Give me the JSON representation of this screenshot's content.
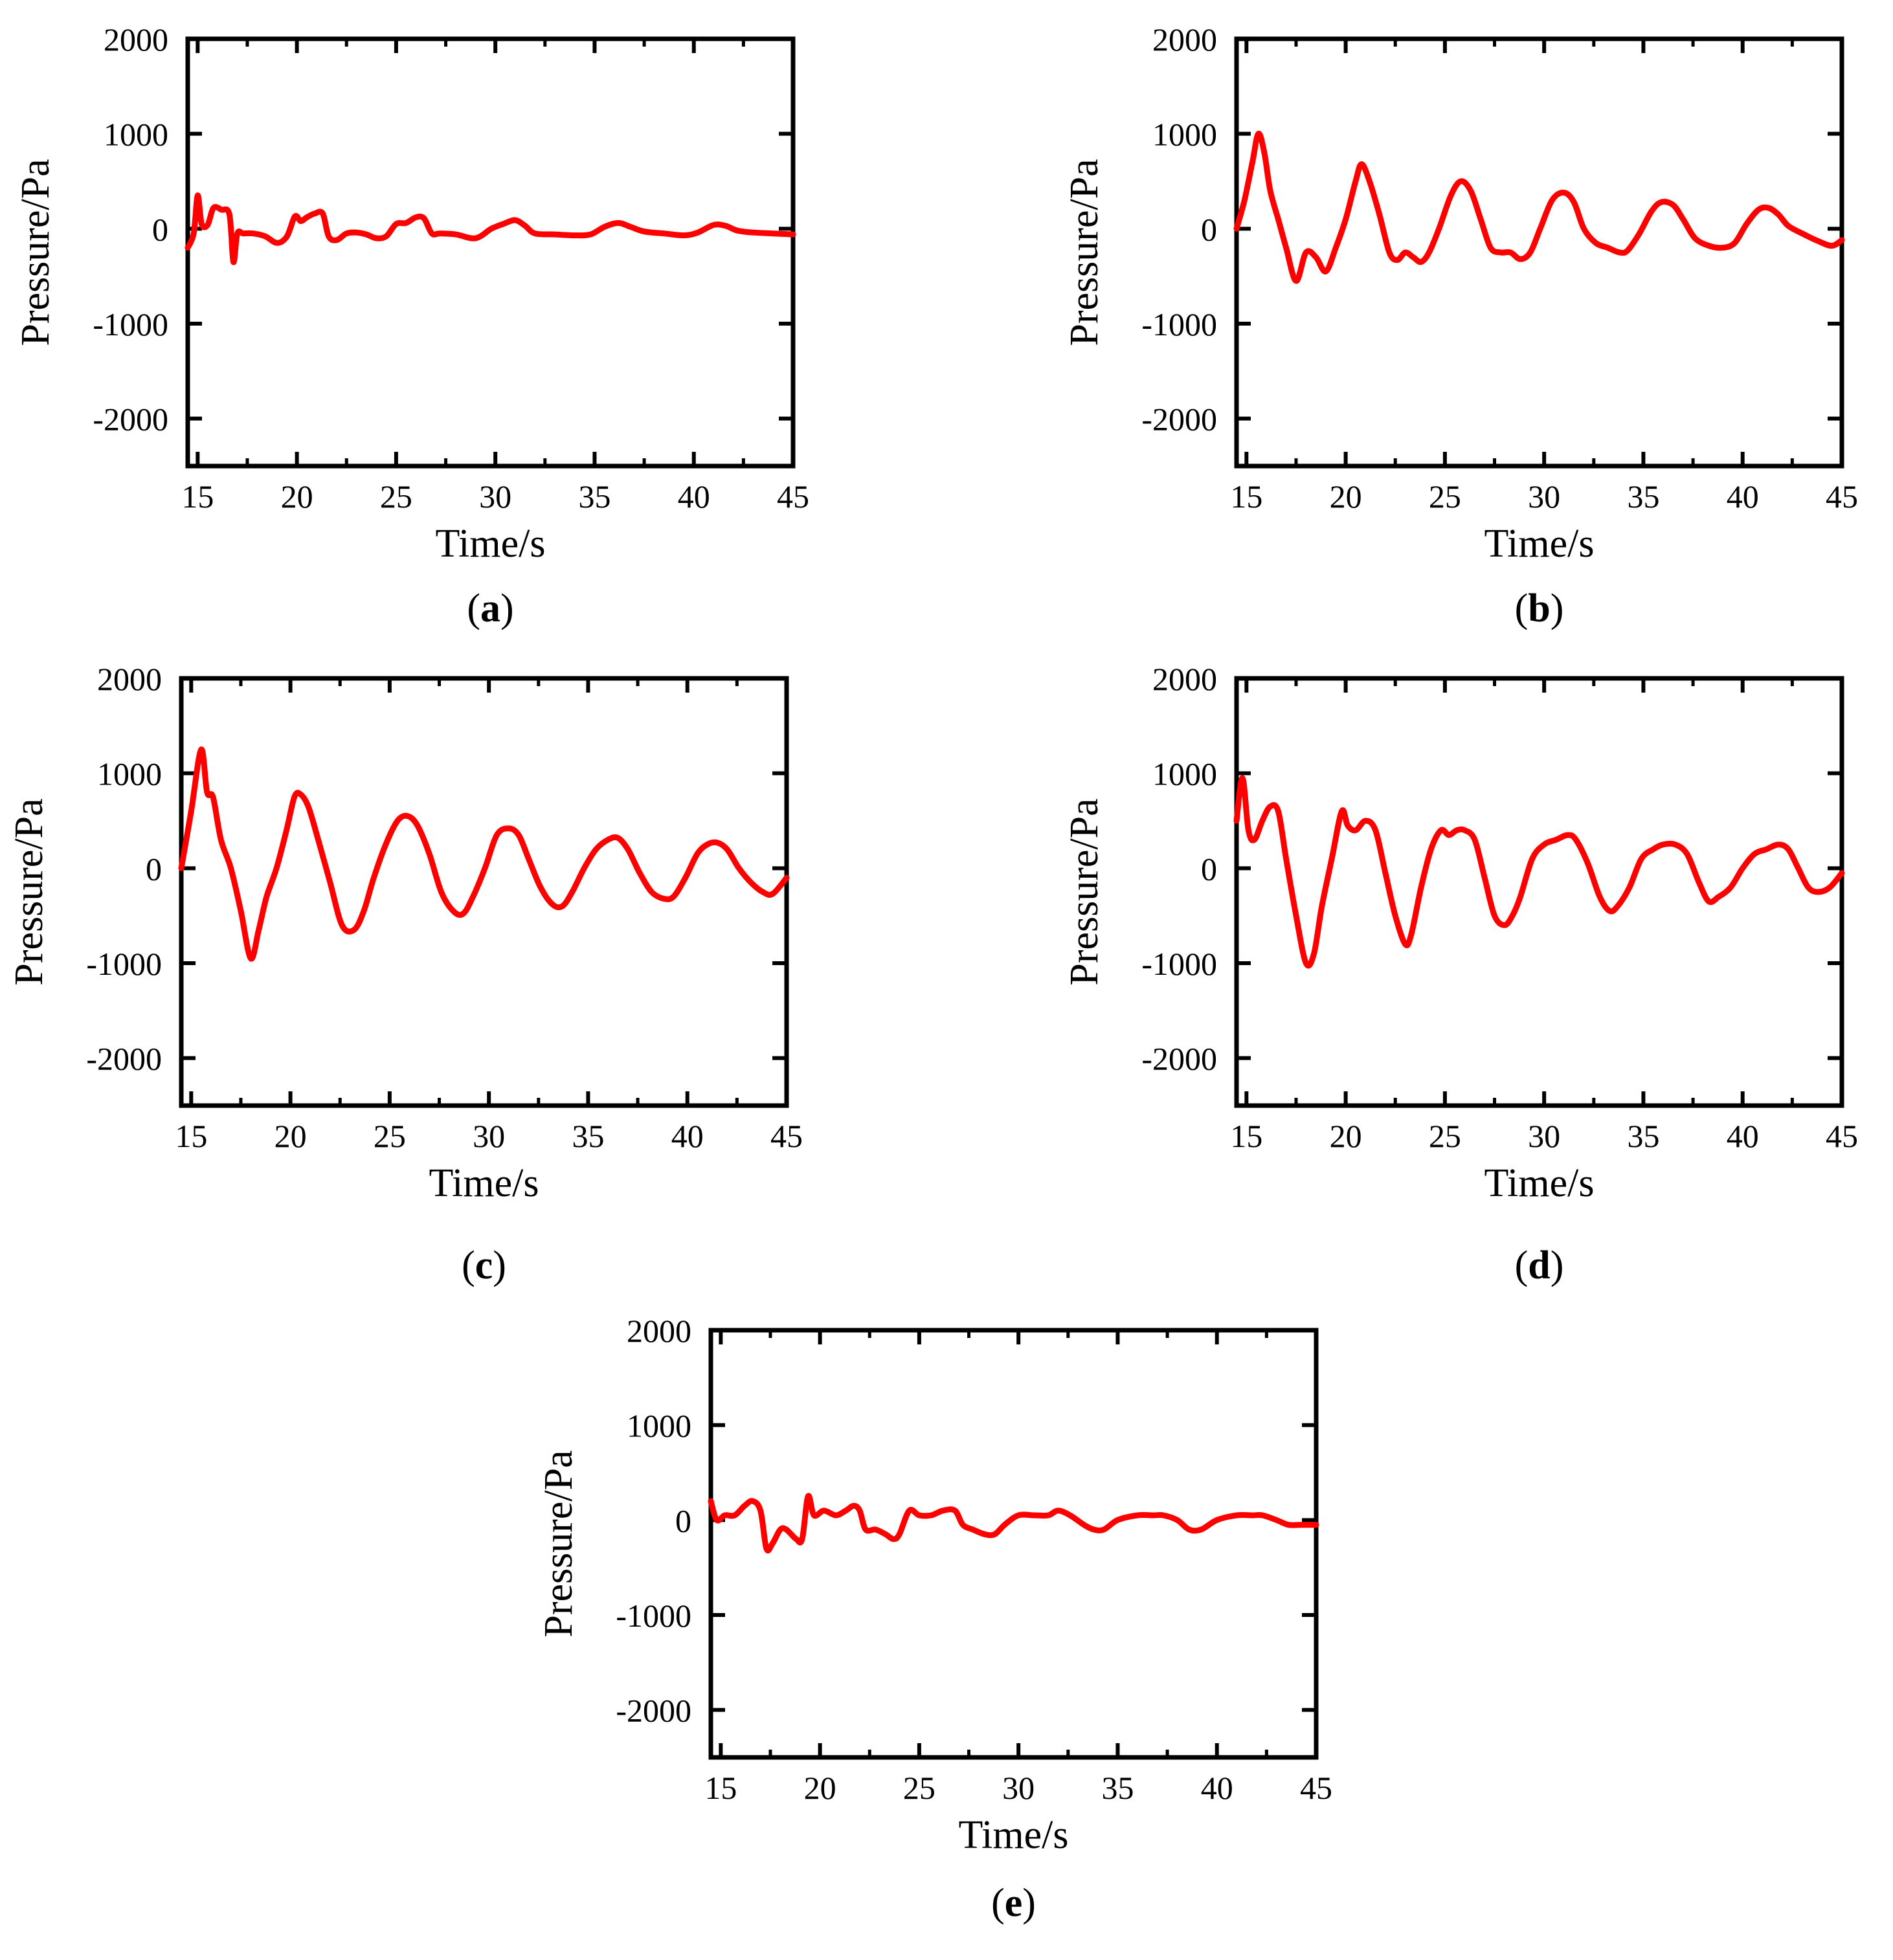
{
  "figure": {
    "line_color": "#ff0000",
    "axis_color": "#000000",
    "background": "#ffffff"
  },
  "chart_data": [
    {
      "id": "a",
      "type": "line",
      "panel_label": "a",
      "xlabel": "Time/s",
      "ylabel": "Pressure/Pa",
      "xlim": [
        14.5,
        45
      ],
      "ylim": [
        -2500,
        2000
      ],
      "xticks": [
        15,
        20,
        25,
        30,
        35,
        40,
        45
      ],
      "yticks": [
        -2000,
        -1000,
        0,
        1000,
        2000
      ],
      "series": [
        {
          "name": "pressure",
          "x": [
            14.5,
            14.8,
            15.0,
            15.2,
            15.5,
            15.8,
            16.2,
            16.6,
            16.8,
            17.0,
            17.3,
            17.8,
            18.4,
            19.0,
            19.5,
            19.9,
            20.2,
            20.5,
            20.9,
            21.3,
            21.6,
            22.0,
            22.5,
            23.0,
            23.5,
            24.0,
            24.5,
            25.0,
            25.5,
            26.0,
            26.4,
            26.8,
            27.2,
            28.0,
            29.0,
            29.8,
            30.4,
            31.0,
            31.5,
            32.0,
            33.0,
            34.0,
            34.8,
            35.5,
            36.2,
            36.8,
            37.5,
            38.5,
            39.5,
            40.2,
            41.0,
            41.6,
            42.2,
            43.0,
            44.0,
            45.0
          ],
          "values": [
            -200,
            -50,
            350,
            50,
            40,
            220,
            200,
            150,
            -350,
            -50,
            -50,
            -50,
            -80,
            -150,
            -80,
            130,
            80,
            120,
            160,
            160,
            -80,
            -120,
            -50,
            -40,
            -60,
            -100,
            -80,
            50,
            60,
            120,
            110,
            -50,
            -50,
            -60,
            -100,
            0,
            50,
            90,
            30,
            -50,
            -60,
            -70,
            -60,
            20,
            60,
            20,
            -30,
            -50,
            -70,
            -40,
            40,
            30,
            -20,
            -40,
            -50,
            -60
          ]
        }
      ]
    },
    {
      "id": "b",
      "type": "line",
      "panel_label": "b",
      "xlabel": "Time/s",
      "ylabel": "Pressure/Pa",
      "xlim": [
        14.5,
        45
      ],
      "ylim": [
        -2500,
        2000
      ],
      "xticks": [
        15,
        20,
        25,
        30,
        35,
        40,
        45
      ],
      "yticks": [
        -2000,
        -1000,
        0,
        1000,
        2000
      ],
      "series": [
        {
          "name": "pressure",
          "x": [
            14.5,
            14.9,
            15.3,
            15.6,
            15.9,
            16.2,
            16.6,
            17.0,
            17.5,
            18.0,
            18.5,
            19.0,
            19.5,
            20.0,
            20.5,
            20.8,
            21.2,
            21.7,
            22.2,
            22.6,
            23.0,
            23.4,
            23.8,
            24.2,
            24.7,
            25.3,
            25.8,
            26.3,
            26.8,
            27.3,
            27.8,
            28.3,
            28.8,
            29.3,
            29.8,
            30.4,
            31.0,
            31.5,
            32.0,
            32.6,
            33.2,
            33.8,
            34.2,
            34.8,
            35.4,
            35.9,
            36.5,
            37.0,
            37.6,
            38.3,
            39.0,
            39.6,
            40.2,
            40.8,
            41.3,
            41.8,
            42.3,
            43.0,
            43.8,
            44.5,
            45.0
          ],
          "values": [
            0,
            300,
            700,
            1000,
            800,
            400,
            100,
            -200,
            -550,
            -250,
            -300,
            -450,
            -200,
            100,
            500,
            680,
            500,
            150,
            -250,
            -330,
            -250,
            -300,
            -350,
            -250,
            0,
            350,
            500,
            400,
            100,
            -200,
            -250,
            -250,
            -320,
            -250,
            0,
            300,
            380,
            280,
            0,
            -150,
            -200,
            -250,
            -230,
            -50,
            180,
            280,
            250,
            100,
            -100,
            -180,
            -200,
            -150,
            50,
            200,
            220,
            150,
            30,
            -50,
            -130,
            -180,
            -120
          ]
        }
      ]
    },
    {
      "id": "c",
      "type": "line",
      "panel_label": "c",
      "xlabel": "Time/s",
      "ylabel": "Pressure/Pa",
      "xlim": [
        14.5,
        45
      ],
      "ylim": [
        -2500,
        2000
      ],
      "xticks": [
        15,
        20,
        25,
        30,
        35,
        40,
        45
      ],
      "yticks": [
        -2000,
        -1000,
        0,
        1000,
        2000
      ],
      "series": [
        {
          "name": "pressure",
          "x": [
            14.5,
            15.0,
            15.5,
            15.8,
            16.1,
            16.5,
            17.0,
            17.5,
            18.0,
            18.4,
            18.8,
            19.3,
            19.8,
            20.2,
            20.5,
            20.9,
            21.4,
            22.0,
            22.6,
            23.2,
            23.7,
            24.2,
            24.8,
            25.4,
            25.9,
            26.4,
            27.0,
            27.6,
            28.2,
            28.7,
            29.2,
            29.8,
            30.4,
            31.0,
            31.5,
            32.0,
            32.6,
            33.2,
            33.7,
            34.2,
            34.8,
            35.4,
            36.0,
            36.5,
            37.0,
            37.6,
            38.2,
            38.8,
            39.3,
            39.9,
            40.5,
            41.0,
            41.5,
            42.0,
            42.6,
            43.2,
            43.8,
            44.3,
            45.0
          ],
          "values": [
            0,
            600,
            1250,
            800,
            750,
            300,
            0,
            -450,
            -950,
            -650,
            -300,
            0,
            400,
            750,
            780,
            650,
            300,
            -150,
            -600,
            -650,
            -450,
            -100,
            250,
            500,
            550,
            450,
            150,
            -250,
            -450,
            -480,
            -300,
            0,
            350,
            420,
            350,
            100,
            -200,
            -380,
            -400,
            -250,
            0,
            200,
            300,
            320,
            200,
            -50,
            -250,
            -320,
            -300,
            -100,
            150,
            250,
            270,
            200,
            0,
            -150,
            -250,
            -270,
            -100
          ]
        }
      ]
    },
    {
      "id": "d",
      "type": "line",
      "panel_label": "d",
      "xlabel": "Time/s",
      "ylabel": "Pressure/Pa",
      "xlim": [
        14.5,
        45
      ],
      "ylim": [
        -2500,
        2000
      ],
      "xticks": [
        15,
        20,
        25,
        30,
        35,
        40,
        45
      ],
      "yticks": [
        -2000,
        -1000,
        0,
        1000,
        2000
      ],
      "series": [
        {
          "name": "pressure",
          "x": [
            14.5,
            14.8,
            15.1,
            15.4,
            15.8,
            16.2,
            16.6,
            17.0,
            17.5,
            18.0,
            18.4,
            18.8,
            19.3,
            19.8,
            20.1,
            20.5,
            21.0,
            21.5,
            22.0,
            22.5,
            23.0,
            23.3,
            23.8,
            24.3,
            24.8,
            25.2,
            25.6,
            26.0,
            26.5,
            27.0,
            27.5,
            28.0,
            28.4,
            28.8,
            29.4,
            30.0,
            30.6,
            31.2,
            31.6,
            32.2,
            32.8,
            33.3,
            33.7,
            34.3,
            34.9,
            35.5,
            36.0,
            36.6,
            37.2,
            37.8,
            38.3,
            38.8,
            39.4,
            40.0,
            40.6,
            41.2,
            41.8,
            42.3,
            42.8,
            43.3,
            43.8,
            44.4,
            45.0
          ],
          "values": [
            500,
            950,
            400,
            300,
            500,
            650,
            600,
            100,
            -500,
            -1000,
            -900,
            -400,
            100,
            600,
            450,
            400,
            500,
            400,
            -50,
            -500,
            -800,
            -700,
            -200,
            200,
            400,
            350,
            400,
            400,
            300,
            -100,
            -500,
            -600,
            -500,
            -300,
            100,
            250,
            300,
            350,
            300,
            50,
            -300,
            -450,
            -400,
            -200,
            100,
            200,
            250,
            250,
            150,
            -150,
            -350,
            -300,
            -200,
            0,
            150,
            200,
            250,
            200,
            0,
            -200,
            -250,
            -200,
            -50
          ]
        }
      ]
    },
    {
      "id": "e",
      "type": "line",
      "panel_label": "e",
      "xlabel": "Time/s",
      "ylabel": "Pressure/Pa",
      "xlim": [
        14.5,
        45
      ],
      "ylim": [
        -2500,
        2000
      ],
      "xticks": [
        15,
        20,
        25,
        30,
        35,
        40,
        45
      ],
      "yticks": [
        -2000,
        -1000,
        0,
        1000,
        2000
      ],
      "series": [
        {
          "name": "pressure",
          "x": [
            14.5,
            14.8,
            15.2,
            15.7,
            16.2,
            16.6,
            17.0,
            17.3,
            17.6,
            18.0,
            18.3,
            18.8,
            19.1,
            19.4,
            19.7,
            20.2,
            20.8,
            21.3,
            21.7,
            22.0,
            22.3,
            22.8,
            23.3,
            23.7,
            24.0,
            24.5,
            25.0,
            25.6,
            26.2,
            26.8,
            27.2,
            27.7,
            28.3,
            28.8,
            29.3,
            30.0,
            30.8,
            31.5,
            32.0,
            32.6,
            33.3,
            33.8,
            34.3,
            35.0,
            36.0,
            36.8,
            37.3,
            38.0,
            38.6,
            39.2,
            40.0,
            41.0,
            41.8,
            42.3,
            43.0,
            43.6,
            44.2,
            45.0
          ],
          "values": [
            200,
            0,
            50,
            50,
            150,
            200,
            100,
            -300,
            -250,
            -100,
            -100,
            -200,
            -200,
            250,
            50,
            100,
            50,
            100,
            150,
            100,
            -100,
            -100,
            -150,
            -200,
            -150,
            100,
            50,
            50,
            100,
            100,
            -50,
            -100,
            -150,
            -150,
            -50,
            50,
            50,
            50,
            100,
            50,
            -50,
            -100,
            -100,
            0,
            50,
            50,
            50,
            0,
            -100,
            -100,
            0,
            50,
            50,
            50,
            0,
            -50,
            -50,
            -50
          ]
        }
      ]
    }
  ]
}
